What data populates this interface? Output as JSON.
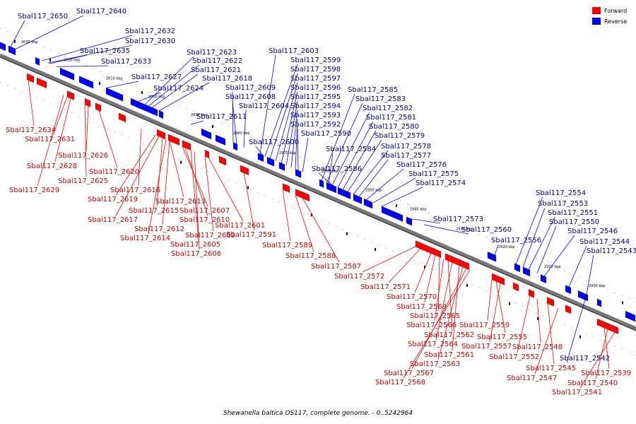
{
  "caption": "Shewanella baltica OS117, complete genome. - 0..5242964",
  "legend": [
    {
      "label": "Forward",
      "color": "#ff0000"
    },
    {
      "label": "Reverse",
      "color": "#0000ff"
    }
  ],
  "colors": {
    "forward": "#ff0000",
    "reverse": "#0000ff",
    "forward_label": "#cc0000",
    "reverse_label": "#00008b",
    "backbone": "#777777"
  },
  "ticks": [
    "3030 kbp",
    "3020 kbp",
    "3010 kbp",
    "3000 kbp",
    "2990 kbp",
    "2980 kbp",
    "2970 kbp",
    "2960 kbp",
    "2950 kbp",
    "2940 kbp",
    "2930 kbp",
    "2920 kbp",
    "2910 kbp",
    "2900 kbp"
  ],
  "reverse_labels": [
    "Sbal117_2650",
    "Sbal117_2640",
    "Sbal117_2632",
    "Sbal117_2630",
    "Sbal117_2635",
    "Sbal117_2633",
    "Sbal117_2623",
    "Sbal117_2622",
    "Sbal117_2621",
    "Sbal117_2627",
    "Sbal117_2618",
    "Sbal117_2624",
    "Sbal117_2609",
    "Sbal117_2608",
    "Sbal117_2604",
    "Sbal117_2611",
    "Sbal117_2600",
    "Sbal117_2603",
    "Sbal117_2599",
    "Sbal117_2598",
    "Sbal117_2597",
    "Sbal117_2596",
    "Sbal117_2595",
    "Sbal117_2594",
    "Sbal117_2593",
    "Sbal117_2592",
    "Sbal117_2590",
    "Sbal117_2585",
    "Sbal117_2583",
    "Sbal117_2582",
    "Sbal117_2581",
    "Sbal117_2580",
    "Sbal117_2579",
    "Sbal117_2584",
    "Sbal117_2578",
    "Sbal117_2577",
    "Sbal117_2586",
    "Sbal117_2576",
    "Sbal117_2575",
    "Sbal117_2574",
    "Sbal117_2573",
    "Sbal117_2560",
    "Sbal117_2556",
    "Sbal117_2554",
    "Sbal117_2553",
    "Sbal117_2551",
    "Sbal117_2550",
    "Sbal117_2546",
    "Sbal117_2544",
    "Sbal117_2543",
    "Sbal117_2542"
  ],
  "forward_labels": [
    "Sbal117_2634",
    "Sbal117_2631",
    "Sbal117_2626",
    "Sbal117_2628",
    "Sbal117_2620",
    "Sbal117_2625",
    "Sbal117_2629",
    "Sbal117_2616",
    "Sbal117_2619",
    "Sbal117_2615",
    "Sbal117_2613",
    "Sbal117_2617",
    "Sbal117_2607",
    "Sbal117_2610",
    "Sbal117_2612",
    "Sbal117_2614",
    "Sbal117_2602",
    "Sbal117_2601",
    "Sbal117_2605",
    "Sbal117_2606",
    "Sbal117_2591",
    "Sbal117_2589",
    "Sbal117_2588",
    "Sbal117_2587",
    "Sbal117_2572",
    "Sbal117_2571",
    "Sbal117_2570",
    "Sbal117_2569",
    "Sbal117_2565",
    "Sbal117_2566",
    "Sbal117_2562",
    "Sbal117_2564",
    "Sbal117_2561",
    "Sbal117_2563",
    "Sbal117_2567",
    "Sbal117_2568",
    "Sbal117_2559",
    "Sbal117_2555",
    "Sbal117_2557",
    "Sbal117_2548",
    "Sbal117_2552",
    "Sbal117_2545",
    "Sbal117_2547",
    "Sbal117_2539",
    "Sbal117_2540",
    "Sbal117_2541"
  ]
}
